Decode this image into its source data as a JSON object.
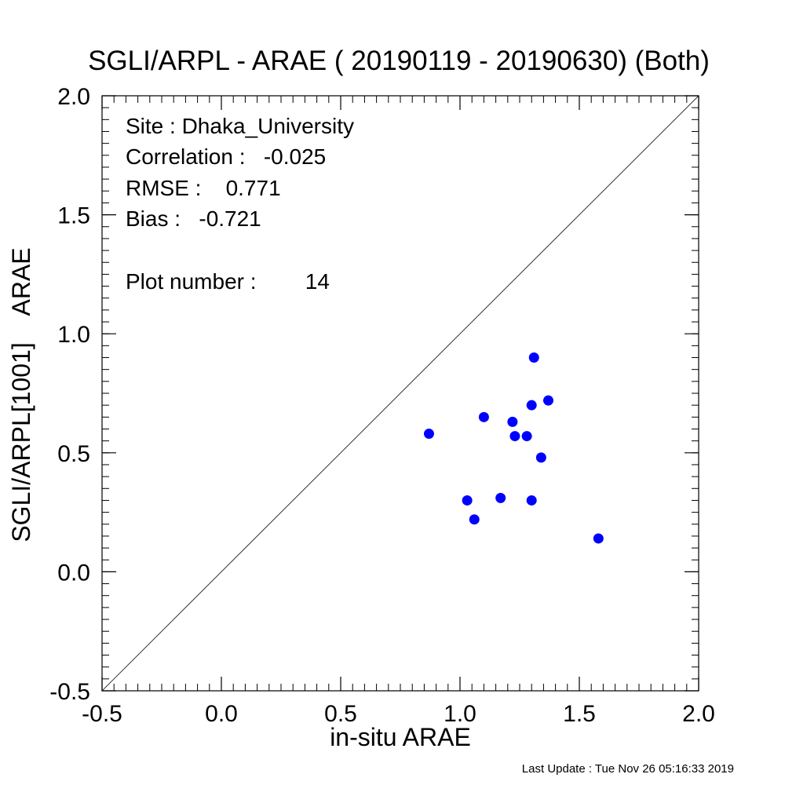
{
  "chart_data": {
    "type": "scatter",
    "title": "SGLI/ARPL - ARAE ( 20190119 - 20190630) (Both)",
    "xlabel": "in-situ ARAE",
    "ylabel": "SGLI/ARPL[1001]    ARAE",
    "xlim": [
      -0.5,
      2.0
    ],
    "ylim": [
      -0.5,
      2.0
    ],
    "x_ticks": [
      "-0.5",
      "0.0",
      "0.5",
      "1.0",
      "1.5",
      "2.0"
    ],
    "y_ticks": [
      "-0.5",
      "0.0",
      "0.5",
      "1.0",
      "1.5",
      "2.0"
    ],
    "reference_line": "1:1",
    "marker_color": "#0000ff",
    "points": [
      {
        "x": 0.87,
        "y": 0.58
      },
      {
        "x": 1.03,
        "y": 0.3
      },
      {
        "x": 1.06,
        "y": 0.22
      },
      {
        "x": 1.1,
        "y": 0.65
      },
      {
        "x": 1.17,
        "y": 0.31
      },
      {
        "x": 1.22,
        "y": 0.63
      },
      {
        "x": 1.23,
        "y": 0.57
      },
      {
        "x": 1.28,
        "y": 0.57
      },
      {
        "x": 1.3,
        "y": 0.3
      },
      {
        "x": 1.3,
        "y": 0.7
      },
      {
        "x": 1.31,
        "y": 0.9
      },
      {
        "x": 1.34,
        "y": 0.48
      },
      {
        "x": 1.37,
        "y": 0.72
      },
      {
        "x": 1.58,
        "y": 0.14
      }
    ],
    "annotations": {
      "site": "Site : Dhaka_University",
      "correlation": "Correlation :   -0.025",
      "rmse": "RMSE :    0.771",
      "bias": "Bias :   -0.721",
      "plot_number": "Plot number :        14"
    }
  },
  "footer": {
    "last_update": "Last Update : Tue Nov 26 05:16:33 2019"
  }
}
